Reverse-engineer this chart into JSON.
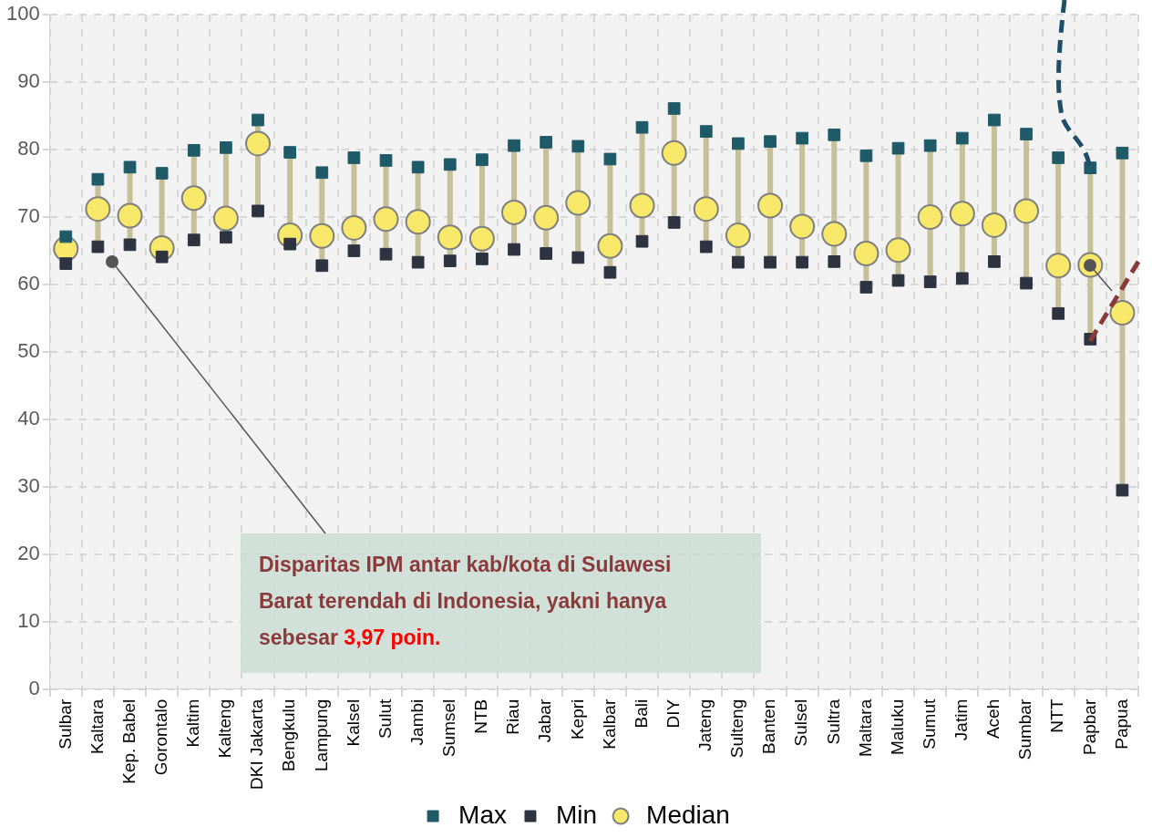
{
  "chart_data": {
    "type": "scatter",
    "categories": [
      "Sulbar",
      "Kaltara",
      "Kep. Babel",
      "Gorontalo",
      "Kaltim",
      "Kalteng",
      "DKI Jakarta",
      "Bengkulu",
      "Lampung",
      "Kalsel",
      "Sulut",
      "Jambi",
      "Sumsel",
      "NTB",
      "Riau",
      "Jabar",
      "Kepri",
      "Kalbar",
      "Bali",
      "DIY",
      "Jateng",
      "Sulteng",
      "Banten",
      "Sulsel",
      "Sultra",
      "Maltara",
      "Maluku",
      "Sumut",
      "Jatim",
      "Aceh",
      "Sumbar",
      "NTT",
      "Papbar",
      "Papua"
    ],
    "series": [
      {
        "name": "Max",
        "color": "#1f5a68",
        "marker": "square",
        "values": [
          67.1,
          75.6,
          77.4,
          76.5,
          79.9,
          80.3,
          84.4,
          79.6,
          76.6,
          78.8,
          78.4,
          77.4,
          77.8,
          78.5,
          80.6,
          81.1,
          80.5,
          78.6,
          83.3,
          86.1,
          82.7,
          80.9,
          81.2,
          81.7,
          82.2,
          79.1,
          80.2,
          80.6,
          81.7,
          84.4,
          82.3,
          78.8,
          77.3,
          79.5
        ]
      },
      {
        "name": "Min",
        "color": "#2d3340",
        "marker": "square",
        "values": [
          63.1,
          65.6,
          65.9,
          64.1,
          66.6,
          67.0,
          70.9,
          66.0,
          62.8,
          65.0,
          64.5,
          63.3,
          63.5,
          63.8,
          65.2,
          64.6,
          64.0,
          61.8,
          66.4,
          69.2,
          65.6,
          63.3,
          63.3,
          63.3,
          63.4,
          59.6,
          60.6,
          60.4,
          60.9,
          63.4,
          60.2,
          55.7,
          51.9,
          29.5
        ]
      },
      {
        "name": "Median",
        "color": "#f7e86a",
        "marker": "circle",
        "values": [
          65.3,
          71.2,
          70.2,
          65.4,
          72.8,
          69.8,
          80.9,
          67.3,
          67.2,
          68.4,
          69.7,
          69.3,
          67.0,
          66.8,
          70.7,
          69.9,
          72.1,
          65.7,
          71.7,
          79.5,
          71.2,
          67.3,
          71.7,
          68.6,
          67.5,
          64.6,
          65.1,
          70.0,
          70.5,
          68.8,
          70.9,
          62.8,
          62.9,
          55.8
        ]
      }
    ],
    "ylim": [
      0,
      100
    ],
    "yticks": [
      0,
      10,
      20,
      30,
      40,
      50,
      60,
      70,
      80,
      90,
      100
    ],
    "grid": true,
    "legend": "bottom",
    "annotations": [
      "Disparitas IPM antar kab/kota di Sulawesi Barat terendah di Indonesia, yakni hanya sebesar 3,97 poin."
    ]
  }
}
